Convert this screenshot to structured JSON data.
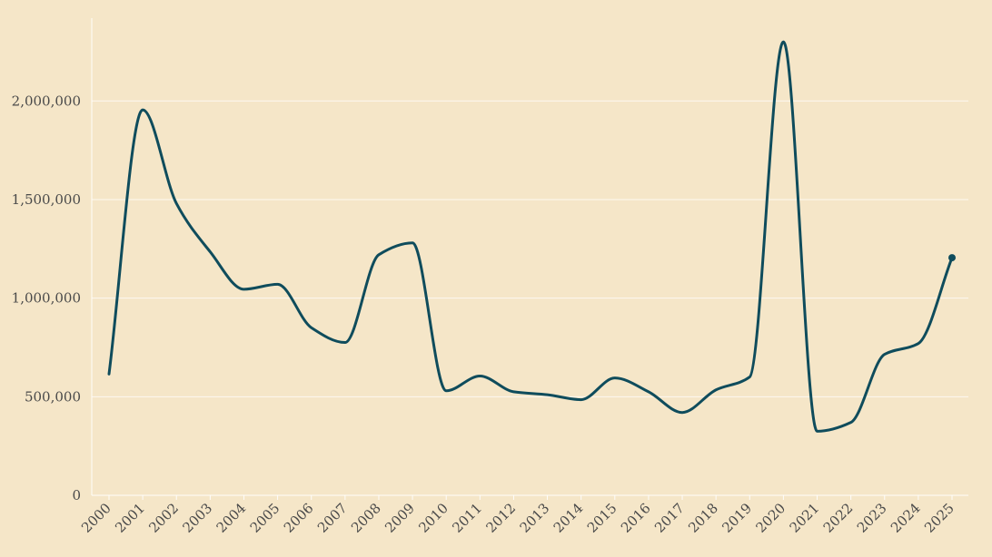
{
  "chart_data": {
    "type": "line",
    "title": "",
    "xlabel": "",
    "ylabel": "",
    "x": [
      "2000",
      "2001",
      "2002",
      "2003",
      "2004",
      "2005",
      "2006",
      "2007",
      "2008",
      "2009",
      "2010",
      "2011",
      "2012",
      "2013",
      "2014",
      "2015",
      "2016",
      "2017",
      "2018",
      "2019",
      "2020",
      "2021",
      "2022",
      "2023",
      "2024",
      "2025"
    ],
    "series": [
      {
        "values": [
          615000,
          1955000,
          1480000,
          1235000,
          1045000,
          1070000,
          850000,
          775000,
          1220000,
          1280000,
          530000,
          605000,
          525000,
          510000,
          485000,
          595000,
          525000,
          420000,
          535000,
          600000,
          2300000,
          325000,
          370000,
          715000,
          770000,
          1205000
        ]
      }
    ],
    "yticks": [
      "0",
      "500,000",
      "1,000,000",
      "1,500,000",
      "2,000,000"
    ],
    "ytick_values": [
      0,
      500000,
      1000000,
      1500000,
      2000000
    ],
    "ylim": [
      0,
      2420000
    ],
    "grid": "horizontal",
    "line_color": "#0f4c5c",
    "background_color": "#f5e6c8"
  }
}
